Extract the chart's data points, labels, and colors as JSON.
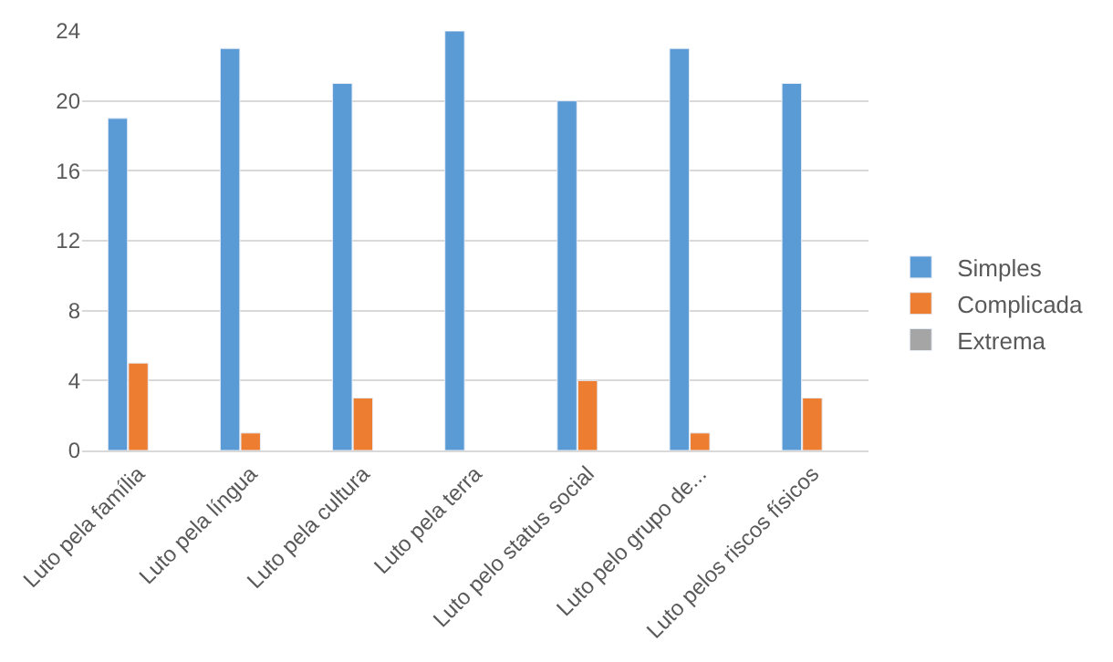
{
  "chart_data": {
    "type": "bar",
    "categories": [
      "Luto pela família",
      "Luto pela língua",
      "Luto pela cultura",
      "Luto pela terra",
      "Luto pelo status social",
      "Luto pelo grupo de...",
      "Luto pelos riscos físicos"
    ],
    "series": [
      {
        "name": "Simples",
        "color": "#5b9bd5",
        "values": [
          19,
          23,
          21,
          24,
          20,
          23,
          21
        ]
      },
      {
        "name": "Complicada",
        "color": "#ed7d31",
        "values": [
          5,
          1,
          3,
          null,
          4,
          1,
          3
        ]
      },
      {
        "name": "Extrema",
        "color": "#a5a5a5",
        "values": [
          null,
          null,
          null,
          null,
          null,
          null,
          null
        ]
      }
    ],
    "ylim": [
      0,
      24
    ],
    "yticks": [
      0,
      4,
      8,
      12,
      16,
      20,
      24
    ],
    "grid": "y",
    "legend": "right"
  }
}
